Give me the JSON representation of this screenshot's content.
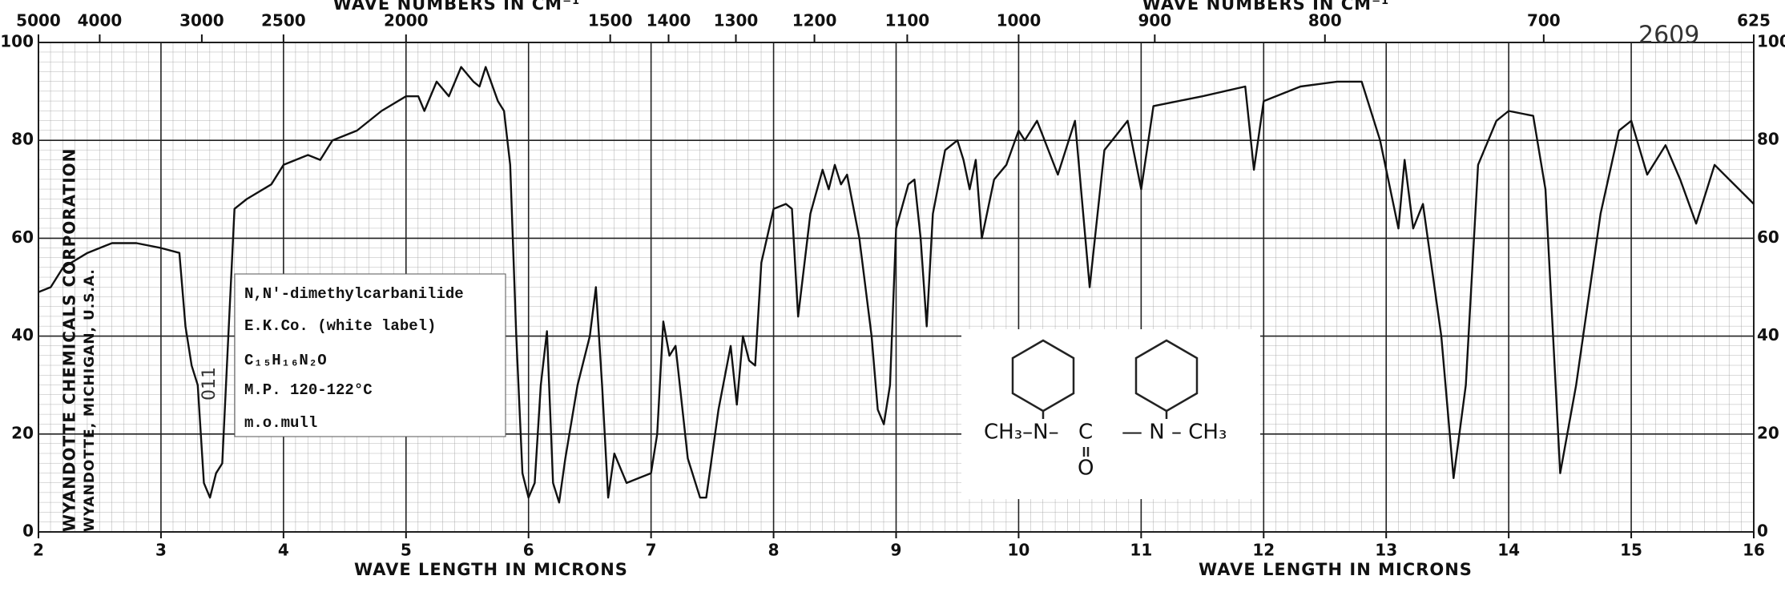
{
  "chart_data": {
    "type": "line",
    "x_labels": [
      "WAVE LENGTH IN MICRONS",
      "WAVE LENGTH IN MICRONS"
    ],
    "x2_labels": [
      "WAVE NUMBERS IN CM⁻¹",
      "WAVE NUMBERS IN CM⁻¹"
    ],
    "x": [
      2.0,
      2.1,
      2.2,
      2.4,
      2.6,
      2.8,
      3.0,
      3.15,
      3.2,
      3.25,
      3.3,
      3.35,
      3.4,
      3.45,
      3.5,
      3.55,
      3.6,
      3.7,
      3.9,
      4.0,
      4.2,
      4.3,
      4.4,
      4.6,
      4.8,
      5.0,
      5.1,
      5.15,
      5.25,
      5.35,
      5.45,
      5.55,
      5.6,
      5.65,
      5.75,
      5.8,
      5.85,
      5.9,
      5.95,
      6.0,
      6.05,
      6.1,
      6.15,
      6.2,
      6.25,
      6.3,
      6.4,
      6.5,
      6.55,
      6.6,
      6.65,
      6.7,
      6.8,
      6.9,
      7.0,
      7.05,
      7.1,
      7.15,
      7.2,
      7.3,
      7.4,
      7.45,
      7.55,
      7.65,
      7.7,
      7.75,
      7.8,
      7.85,
      7.9,
      8.0,
      8.1,
      8.15,
      8.2,
      8.3,
      8.4,
      8.45,
      8.5,
      8.55,
      8.6,
      8.7,
      8.8,
      8.85,
      8.9,
      8.95,
      9.0,
      9.1,
      9.15,
      9.2,
      9.25,
      9.3,
      9.4,
      9.5,
      9.55,
      9.6,
      9.65,
      9.7,
      9.8,
      9.9,
      10.0,
      10.05,
      10.15,
      10.32,
      10.46,
      10.58,
      10.7,
      10.89,
      11.0,
      11.1,
      11.5,
      11.85,
      11.92,
      12.0,
      12.3,
      12.6,
      12.8,
      12.95,
      13.1,
      13.15,
      13.22,
      13.3,
      13.45,
      13.55,
      13.65,
      13.75,
      13.9,
      14.0,
      14.2,
      14.3,
      14.42,
      14.55,
      14.75,
      14.9,
      15.0,
      15.13,
      15.28,
      15.4,
      15.53,
      15.68,
      16.0
    ],
    "values": [
      49,
      50,
      54,
      57,
      59,
      59,
      58,
      57,
      42,
      34,
      30,
      10,
      7,
      12,
      14,
      40,
      66,
      68,
      71,
      75,
      77,
      76,
      80,
      82,
      86,
      89,
      89,
      86,
      92,
      89,
      95,
      92,
      91,
      95,
      88,
      86,
      75,
      40,
      12,
      7,
      10,
      30,
      41,
      10,
      6,
      15,
      30,
      40,
      50,
      30,
      7,
      16,
      10,
      11,
      12,
      20,
      43,
      36,
      38,
      15,
      7,
      7,
      25,
      38,
      26,
      40,
      35,
      34,
      55,
      66,
      67,
      66,
      44,
      65,
      74,
      70,
      75,
      71,
      73,
      60,
      40,
      25,
      22,
      30,
      62,
      71,
      72,
      60,
      42,
      65,
      78,
      80,
      76,
      70,
      76,
      60,
      72,
      75,
      82,
      80,
      84,
      73,
      84,
      50,
      78,
      84,
      70,
      87,
      89,
      91,
      74,
      88,
      91,
      92,
      92,
      80,
      62,
      76,
      62,
      67,
      40,
      11,
      30,
      75,
      84,
      86,
      85,
      70,
      12,
      30,
      65,
      82,
      84,
      73,
      79,
      72,
      63,
      75,
      67
    ],
    "color": "#111111",
    "xlim": [
      2,
      16
    ],
    "ylim": [
      0,
      100
    ],
    "xticks": [
      2,
      3,
      4,
      5,
      6,
      7,
      8,
      9,
      10,
      11,
      12,
      13,
      14,
      15,
      16
    ],
    "yticks": [
      0,
      20,
      40,
      60,
      80,
      100
    ],
    "x2ticks": [
      5000,
      4000,
      3000,
      2500,
      2000,
      1500,
      1400,
      1300,
      1200,
      1100,
      1000,
      900,
      800,
      700,
      625
    ],
    "grid": true
  },
  "sample": {
    "lines": [
      "N,N'-dimethylcarbanilide",
      "E.K.Co. (white label)",
      "C₁₅H₁₆N₂O",
      "M.P. 120-122°C",
      "m.o.mull"
    ]
  },
  "structure": {
    "left": "CH₃–N–",
    "center": "C",
    "oxygen": "O",
    "right": "— N – CH₃"
  },
  "publisher": {
    "name": "WYANDOTTE CHEMICALS CORPORATION",
    "location": "WYANDOTTE, MICHIGAN, U.S.A."
  },
  "handwritten": {
    "band": "011",
    "number": "2609"
  }
}
